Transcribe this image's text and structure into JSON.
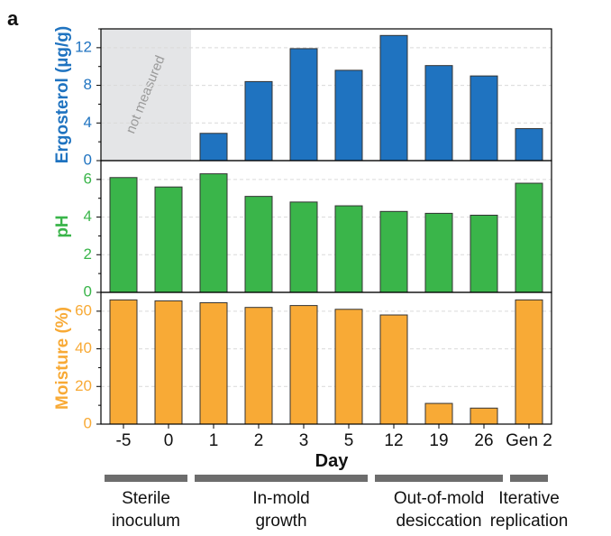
{
  "panel_label": "a",
  "chart_data": {
    "type": "bar",
    "categories": [
      "-5",
      "0",
      "1",
      "2",
      "3",
      "5",
      "12",
      "19",
      "26",
      "Gen 2"
    ],
    "xlabel": "Day",
    "panels": [
      {
        "ylabel": "Ergosterol (µg/g)",
        "color": "#1f73c0",
        "ylim": [
          0,
          14
        ],
        "yticks": [
          0,
          4,
          8,
          12
        ],
        "values": [
          null,
          null,
          2.9,
          8.4,
          11.9,
          9.6,
          13.3,
          10.1,
          9.0,
          3.4
        ],
        "shaded_region": {
          "categories": [
            "-5",
            "0"
          ],
          "label": "not measured"
        }
      },
      {
        "ylabel": "pH",
        "color": "#3ab54a",
        "ylim": [
          0,
          7
        ],
        "yticks": [
          0,
          2,
          4,
          6
        ],
        "values": [
          6.1,
          5.6,
          6.3,
          5.1,
          4.8,
          4.6,
          4.3,
          4.2,
          4.1,
          5.8
        ]
      },
      {
        "ylabel": "Moisture (%)",
        "color": "#f8aa36",
        "ylim": [
          0,
          70
        ],
        "yticks": [
          0,
          20,
          40,
          60
        ],
        "values": [
          66,
          65.5,
          64.5,
          62,
          63,
          61,
          58,
          11,
          8.5,
          66
        ]
      }
    ],
    "groups": [
      {
        "label_lines": [
          "Sterile",
          "inoculum"
        ],
        "categories": [
          "-5",
          "0"
        ]
      },
      {
        "label_lines": [
          "In-mold",
          "growth"
        ],
        "categories": [
          "1",
          "2",
          "3",
          "5"
        ]
      },
      {
        "label_lines": [
          "Out-of-mold",
          "desiccation"
        ],
        "categories": [
          "12",
          "19",
          "26"
        ]
      },
      {
        "label_lines": [
          "Iterative",
          "replication"
        ],
        "categories": [
          "Gen 2"
        ]
      }
    ],
    "grid": "horizontal-dashed",
    "colors": {
      "bar_outline": "#333333",
      "group_bar": "#6d6d6d",
      "shade": "#e4e5e7",
      "grid": "#d9d9d9"
    }
  }
}
